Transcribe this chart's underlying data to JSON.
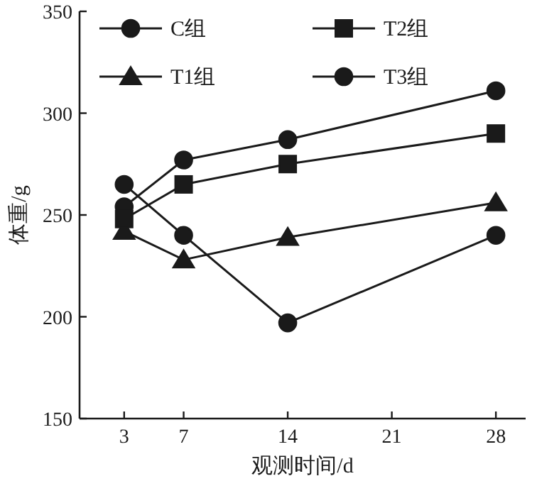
{
  "chart_data": {
    "type": "line",
    "xlabel": "观测时间/d",
    "ylabel": "体重/g",
    "x": [
      3,
      7,
      14,
      28
    ],
    "xlim": [
      0,
      30
    ],
    "xticks": [
      3,
      7,
      14,
      21,
      28
    ],
    "ylim": [
      150,
      350
    ],
    "yticks": [
      150,
      200,
      250,
      300,
      350
    ],
    "legend": "top",
    "line_style": "solid",
    "series": [
      {
        "name": "C组",
        "color": "#1a1a1a",
        "marker": "circle",
        "values": [
          254,
          277,
          287,
          311
        ]
      },
      {
        "name": "T1组",
        "color": "#1a1a1a",
        "marker": "triangle",
        "values": [
          242,
          228,
          239,
          256
        ]
      },
      {
        "name": "T2组",
        "color": "#1a1a1a",
        "marker": "square",
        "values": [
          248,
          265,
          275,
          290
        ]
      },
      {
        "name": "T3组",
        "color": "#1a1a1a",
        "marker": "circle",
        "values": [
          265,
          240,
          197,
          240
        ]
      }
    ]
  }
}
